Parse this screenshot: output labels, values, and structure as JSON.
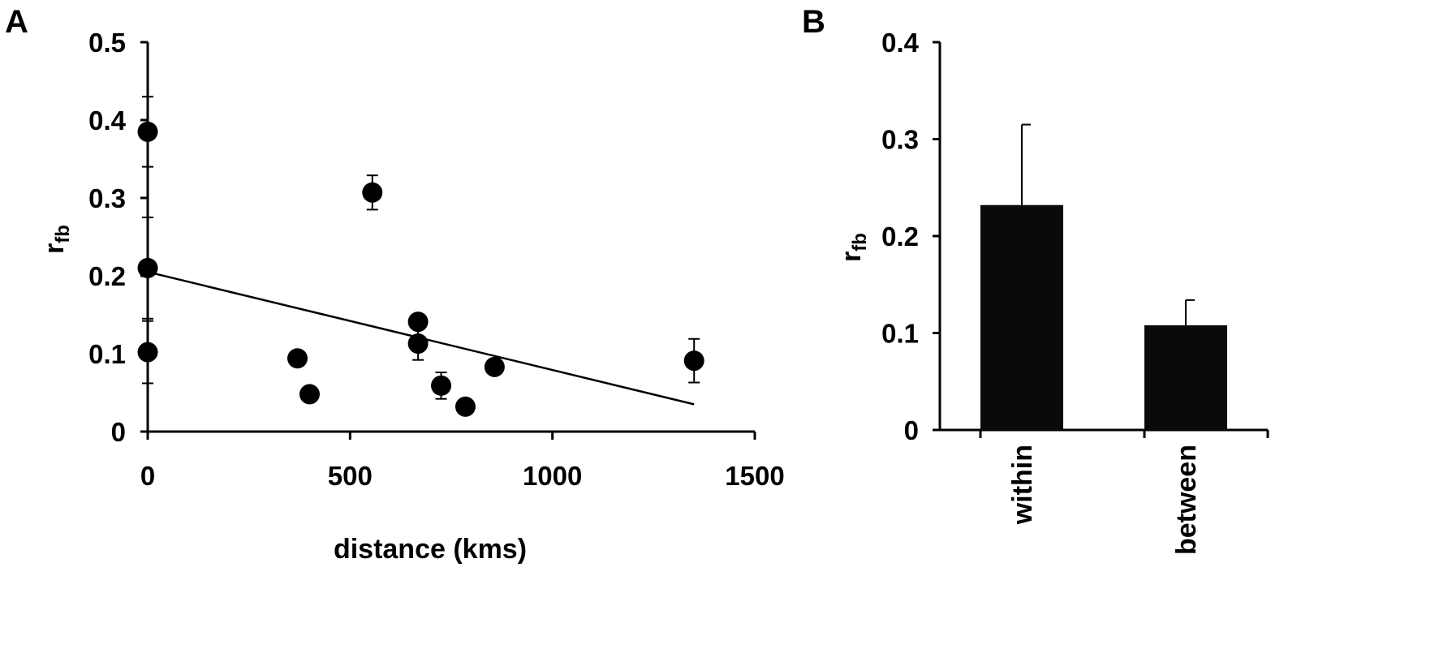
{
  "panels": {
    "a": {
      "label": "A"
    },
    "b": {
      "label": "B"
    }
  },
  "chart_data": [
    {
      "type": "scatter",
      "panel": "A",
      "xlabel": "distance (kms)",
      "ylabel_main": "r",
      "ylabel_sub": "fb",
      "xlim": [
        0,
        1500
      ],
      "ylim": [
        0,
        0.5
      ],
      "xticks": [
        0,
        500,
        1000,
        1500
      ],
      "yticks": [
        0,
        0.1,
        0.2,
        0.3,
        0.4,
        0.5
      ],
      "xtick_labels": [
        "0",
        "500",
        "1000",
        "1500"
      ],
      "ytick_labels": [
        "0",
        "0.1",
        "0.2",
        "0.3",
        "0.4",
        "0.5"
      ],
      "grid": false,
      "points": [
        {
          "x": 0,
          "y": 0.385,
          "err": 0.045
        },
        {
          "x": 0,
          "y": 0.21,
          "err": 0.065
        },
        {
          "x": 0,
          "y": 0.102,
          "err": 0.04
        },
        {
          "x": 555,
          "y": 0.307,
          "err": 0.022
        },
        {
          "x": 370,
          "y": 0.094,
          "err": 0
        },
        {
          "x": 400,
          "y": 0.048,
          "err": 0
        },
        {
          "x": 668,
          "y": 0.141,
          "err": 0
        },
        {
          "x": 668,
          "y": 0.113,
          "err": 0.021
        },
        {
          "x": 725,
          "y": 0.059,
          "err": 0.017
        },
        {
          "x": 785,
          "y": 0.032,
          "err": 0
        },
        {
          "x": 857,
          "y": 0.083,
          "err": 0
        },
        {
          "x": 1350,
          "y": 0.091,
          "err": 0.028
        }
      ],
      "trendline": {
        "x": [
          0,
          1350
        ],
        "y": [
          0.205,
          0.035
        ]
      }
    },
    {
      "type": "bar",
      "panel": "B",
      "categories": [
        "within",
        "between"
      ],
      "values": [
        0.232,
        0.108
      ],
      "errors": [
        0.083,
        0.026
      ],
      "ylabel_main": "r",
      "ylabel_sub": "fb",
      "ylim": [
        0,
        0.4
      ],
      "yticks": [
        0,
        0.1,
        0.2,
        0.3,
        0.4
      ],
      "ytick_labels": [
        "0",
        "0.1",
        "0.2",
        "0.3",
        "0.4"
      ],
      "grid": false,
      "bar_color": "#0a0a0a"
    }
  ]
}
